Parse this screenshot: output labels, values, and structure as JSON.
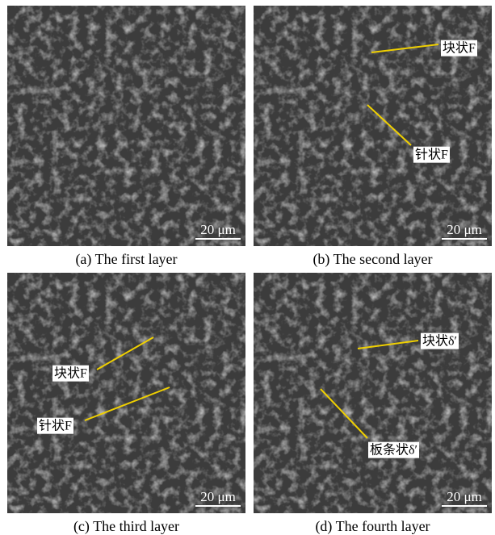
{
  "panels": [
    {
      "caption": "(a) The first layer",
      "scale_bar": "20 μm",
      "annotations": []
    },
    {
      "caption": "(b) The second layer",
      "scale_bar": "20 μm",
      "annotations": [
        "块状F",
        "针状F"
      ]
    },
    {
      "caption": "(c) The third layer",
      "scale_bar": "20 μm",
      "annotations": [
        "块状F",
        "针状F"
      ]
    },
    {
      "caption": "(d) The fourth layer",
      "scale_bar": "20 μm",
      "annotations": [
        "块状δ′",
        "板条状δ′"
      ]
    }
  ]
}
